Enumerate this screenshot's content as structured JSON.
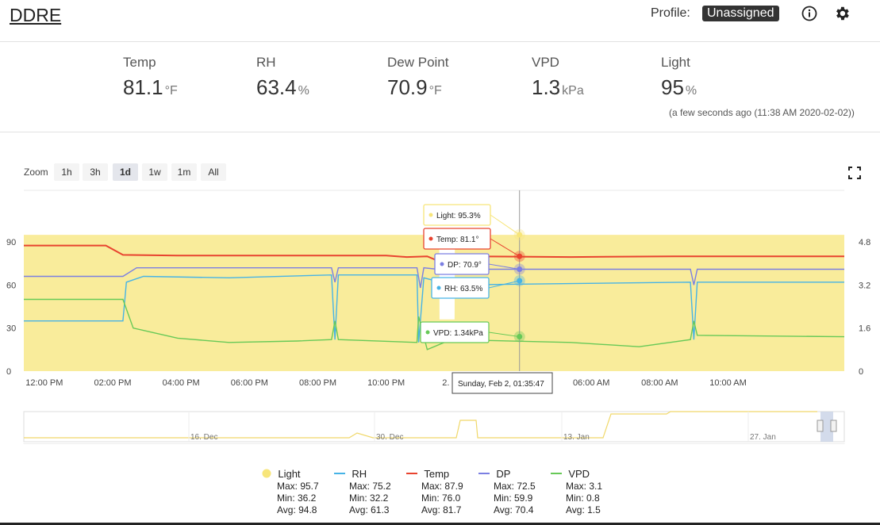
{
  "app": {
    "title": "DDRE"
  },
  "header": {
    "profile_label": "Profile:",
    "profile_value": "Unassigned"
  },
  "stats": [
    {
      "label": "Temp",
      "value": "81.1",
      "unit": "°F"
    },
    {
      "label": "RH",
      "value": "63.4",
      "unit": "%"
    },
    {
      "label": "Dew Point",
      "value": "70.9",
      "unit": "°F"
    },
    {
      "label": "VPD",
      "value": "1.3",
      "unit": "kPa"
    },
    {
      "label": "Light",
      "value": "95",
      "unit": "%"
    }
  ],
  "timestamp": "(a few seconds ago (11:38 AM 2020-02-02))",
  "zoom": {
    "label": "Zoom",
    "options": [
      "1h",
      "3h",
      "1d",
      "1w",
      "1m",
      "All"
    ],
    "selected": "1d"
  },
  "chart_data": {
    "type": "line",
    "x_labels": [
      "12:00 PM",
      "02:00 PM",
      "04:00 PM",
      "06:00 PM",
      "08:00 PM",
      "10:00 PM",
      "2. Feb",
      "04:00 AM",
      "06:00 AM",
      "08:00 AM",
      "10:00 AM"
    ],
    "y_left": {
      "ticks": [
        "0",
        "30",
        "60",
        "90"
      ],
      "range": [
        0,
        100
      ]
    },
    "y_right": {
      "ticks": [
        "0",
        "1.6",
        "3.2",
        "4.8"
      ],
      "range": [
        0,
        5.33
      ]
    },
    "series": [
      {
        "name": "Light",
        "color": "#f7e57a",
        "axis": "left",
        "type": "area",
        "x": [
          0,
          12.15,
          12.16,
          12.6,
          12.61,
          24
        ],
        "y": [
          95,
          95,
          36,
          36,
          95,
          95
        ]
      },
      {
        "name": "Temp",
        "color": "#e8432f",
        "axis": "left",
        "x": [
          0,
          2.4,
          2.9,
          4.5,
          8,
          10.6,
          11.2,
          11.8,
          12.2,
          13,
          16,
          19,
          24
        ],
        "y": [
          87.5,
          87.5,
          81,
          80.5,
          80.5,
          80.5,
          79.5,
          80,
          76,
          80,
          79.5,
          80,
          80
        ]
      },
      {
        "name": "DP",
        "color": "#7b7fe2",
        "axis": "left",
        "x": [
          0,
          2.9,
          3.3,
          6,
          9,
          9.1,
          9.2,
          11.5,
          11.6,
          11.7,
          12.1,
          16,
          19.5,
          19.6,
          19.7,
          24
        ],
        "y": [
          66,
          66,
          72,
          72,
          72,
          62,
          72,
          72,
          58,
          72,
          71,
          71,
          71,
          60,
          71,
          71
        ]
      },
      {
        "name": "RH",
        "color": "#46b3e6",
        "axis": "left",
        "x": [
          0,
          2.9,
          3,
          3.5,
          6,
          9,
          9.1,
          9.2,
          11.5,
          11.55,
          11.7,
          12.5,
          16,
          19.5,
          19.6,
          19.7,
          24
        ],
        "y": [
          35,
          35,
          62,
          66,
          65,
          67,
          22,
          67,
          67,
          20,
          65,
          60,
          61,
          62,
          22,
          62,
          62
        ]
      },
      {
        "name": "VPD",
        "color": "#67c957",
        "axis": "left",
        "x": [
          0,
          2.9,
          3.2,
          4.5,
          6,
          8,
          9,
          9.1,
          9.2,
          11.5,
          11.55,
          11.8,
          12.5,
          16,
          18,
          19.5,
          19.6,
          19.7,
          24
        ],
        "y": [
          50,
          50,
          30,
          23,
          20,
          21,
          22,
          35,
          22,
          20,
          38,
          15,
          22,
          20,
          17,
          22,
          35,
          25,
          24
        ]
      }
    ],
    "tooltips": [
      {
        "name": "Light",
        "text": "Light: 95.3%",
        "color": "#f7e57a"
      },
      {
        "name": "Temp",
        "text": "Temp: 81.1°",
        "color": "#e8432f"
      },
      {
        "name": "DP",
        "text": "DP: 70.9°",
        "color": "#7b7fe2"
      },
      {
        "name": "RH",
        "text": "RH: 63.5%",
        "color": "#46b3e6"
      },
      {
        "name": "VPD",
        "text": "VPD: 1.34kPa",
        "color": "#67c957"
      }
    ],
    "crosshair_label": "Sunday, Feb 2, 01:35:47",
    "navigator_labels": [
      "16. Dec",
      "30. Dec",
      "13. Jan",
      "27. Jan"
    ]
  },
  "legend": [
    {
      "name": "Light",
      "max": "Max: 95.7",
      "min": "Min: 36.2",
      "avg": "Avg: 94.8",
      "color": "#f7e57a"
    },
    {
      "name": "RH",
      "max": "Max: 75.2",
      "min": "Min: 32.2",
      "avg": "Avg: 61.3",
      "color": "#46b3e6"
    },
    {
      "name": "Temp",
      "max": "Max: 87.9",
      "min": "Min: 76.0",
      "avg": "Avg: 81.7",
      "color": "#e8432f"
    },
    {
      "name": "DP",
      "max": "Max: 72.5",
      "min": "Min: 59.9",
      "avg": "Avg: 70.4",
      "color": "#7b7fe2"
    },
    {
      "name": "VPD",
      "max": "Max: 3.1",
      "min": "Min: 0.8",
      "avg": "Avg: 1.5",
      "color": "#67c957"
    }
  ]
}
